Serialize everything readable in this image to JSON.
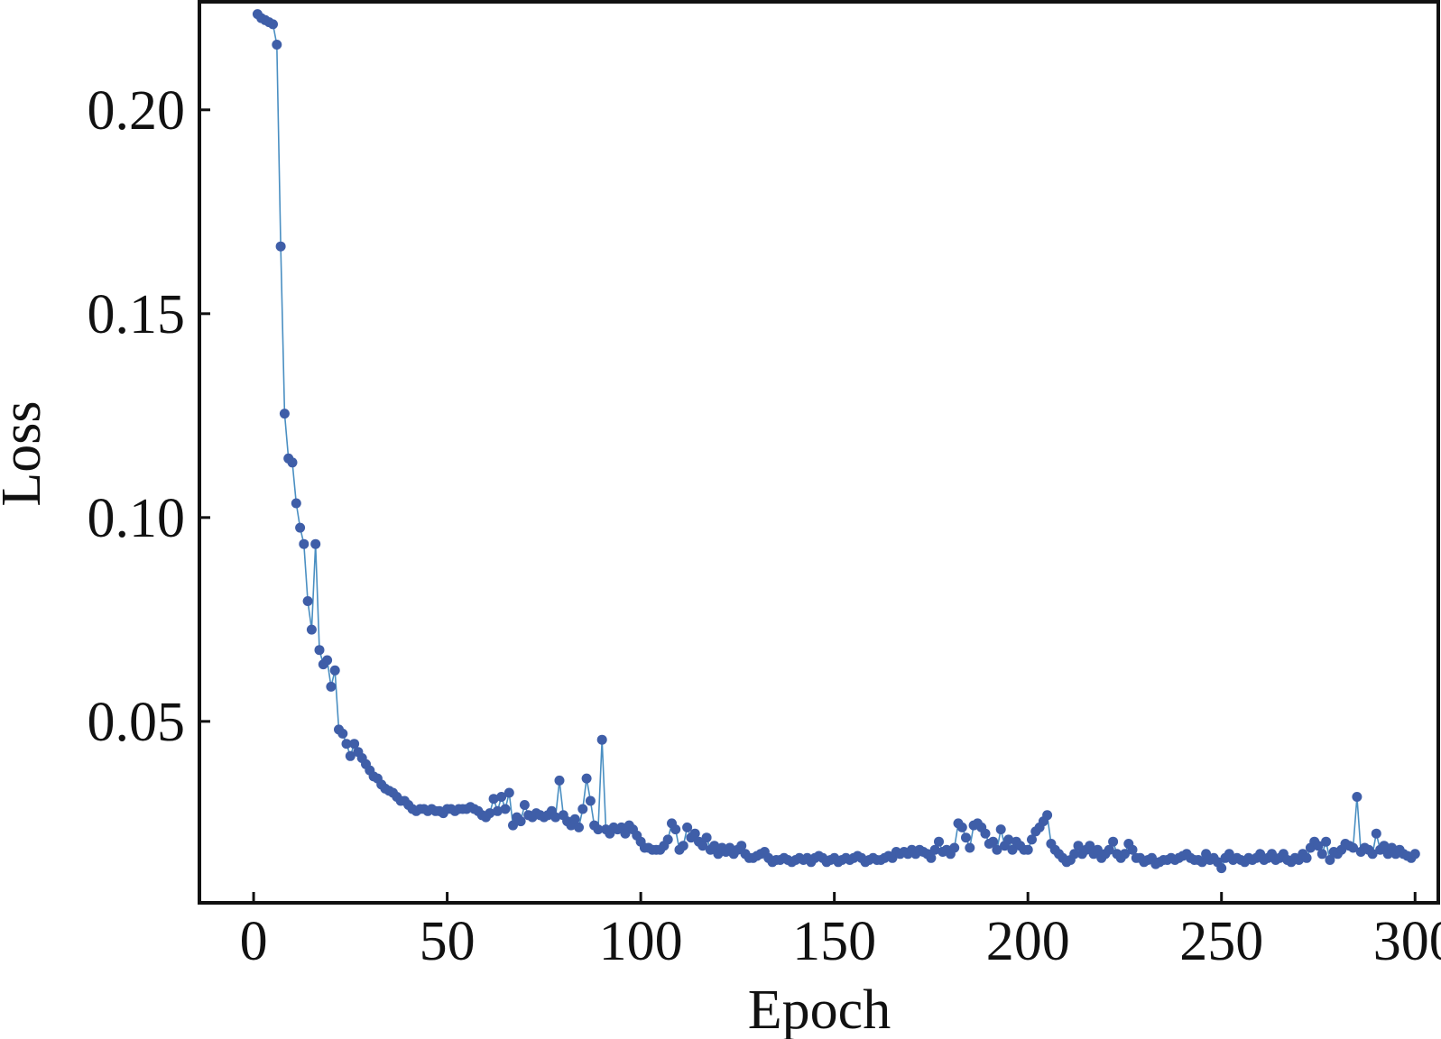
{
  "chart_data": {
    "type": "line",
    "title": "",
    "xlabel": "Epoch",
    "ylabel": "Loss",
    "xlim": [
      -14,
      306
    ],
    "ylim": [
      0.0055,
      0.2265
    ],
    "xticks": [
      0,
      50,
      100,
      150,
      200,
      250,
      300
    ],
    "xtick_labels": [
      "0",
      "50",
      "100",
      "150",
      "200",
      "250",
      "300"
    ],
    "yticks": [
      0.05,
      0.1,
      0.15,
      0.2
    ],
    "ytick_labels": [
      "0.05",
      "0.10",
      "0.15",
      "0.20"
    ],
    "grid": false,
    "legend": "none",
    "colors": {
      "marker": "#3f5ea8",
      "line": "#4a8fc2",
      "axis": "#111111"
    },
    "series": [
      {
        "x": [
          1,
          2,
          3,
          4,
          5,
          6,
          7,
          8,
          9,
          10,
          11,
          12,
          13,
          14,
          15,
          16,
          17,
          18,
          19,
          20,
          21,
          22,
          23,
          24,
          25,
          26,
          27,
          28,
          29,
          30,
          31,
          32,
          33,
          34,
          35,
          36,
          37,
          38,
          39,
          40,
          41,
          42,
          43,
          44,
          45,
          46,
          47,
          48,
          49,
          50,
          51,
          52,
          53,
          54,
          55,
          56,
          57,
          58,
          59,
          60,
          61,
          62,
          63,
          64,
          65,
          66,
          67,
          68,
          69,
          70,
          71,
          72,
          73,
          74,
          75,
          76,
          77,
          78,
          79,
          80,
          81,
          82,
          83,
          84,
          85,
          86,
          87,
          88,
          89,
          90,
          91,
          92,
          93,
          94,
          95,
          96,
          97,
          98,
          99,
          100,
          101,
          102,
          103,
          104,
          105,
          106,
          107,
          108,
          109,
          110,
          111,
          112,
          113,
          114,
          115,
          116,
          117,
          118,
          119,
          120,
          121,
          122,
          123,
          124,
          125,
          126,
          127,
          128,
          129,
          130,
          131,
          132,
          133,
          134,
          135,
          136,
          137,
          138,
          139,
          140,
          141,
          142,
          143,
          144,
          145,
          146,
          147,
          148,
          149,
          150,
          151,
          152,
          153,
          154,
          155,
          156,
          157,
          158,
          159,
          160,
          161,
          162,
          163,
          164,
          165,
          166,
          167,
          168,
          169,
          170,
          171,
          172,
          173,
          174,
          175,
          176,
          177,
          178,
          179,
          180,
          181,
          182,
          183,
          184,
          185,
          186,
          187,
          188,
          189,
          190,
          191,
          192,
          193,
          194,
          195,
          196,
          197,
          198,
          199,
          200,
          201,
          202,
          203,
          204,
          205,
          206,
          207,
          208,
          209,
          210,
          211,
          212,
          213,
          214,
          215,
          216,
          217,
          218,
          219,
          220,
          221,
          222,
          223,
          224,
          225,
          226,
          227,
          228,
          229,
          230,
          231,
          232,
          233,
          234,
          235,
          236,
          237,
          238,
          239,
          240,
          241,
          242,
          243,
          244,
          245,
          246,
          247,
          248,
          249,
          250,
          251,
          252,
          253,
          254,
          255,
          256,
          257,
          258,
          259,
          260,
          261,
          262,
          263,
          264,
          265,
          266,
          267,
          268,
          269,
          270,
          271,
          272,
          273,
          274,
          275,
          276,
          277,
          278,
          279,
          280,
          281,
          282,
          283,
          284,
          285,
          286,
          287,
          288,
          289,
          290,
          291,
          292,
          293,
          294,
          295,
          296,
          297,
          298,
          299,
          300
        ],
        "values": [
          0.2235,
          0.2225,
          0.222,
          0.2215,
          0.221,
          0.216,
          0.1665,
          0.1255,
          0.1145,
          0.1135,
          0.1035,
          0.0975,
          0.0935,
          0.0795,
          0.0725,
          0.0935,
          0.0675,
          0.064,
          0.065,
          0.0585,
          0.0625,
          0.048,
          0.047,
          0.0445,
          0.0415,
          0.0445,
          0.0425,
          0.041,
          0.0395,
          0.038,
          0.0365,
          0.036,
          0.0345,
          0.0335,
          0.033,
          0.0325,
          0.0315,
          0.0305,
          0.0305,
          0.0295,
          0.0285,
          0.028,
          0.0285,
          0.0285,
          0.028,
          0.0285,
          0.028,
          0.028,
          0.0275,
          0.0285,
          0.0285,
          0.028,
          0.0285,
          0.0285,
          0.0285,
          0.029,
          0.0285,
          0.028,
          0.027,
          0.0265,
          0.0275,
          0.031,
          0.028,
          0.0315,
          0.0285,
          0.0325,
          0.0245,
          0.0265,
          0.0255,
          0.0295,
          0.027,
          0.0265,
          0.0275,
          0.027,
          0.0265,
          0.027,
          0.028,
          0.0265,
          0.0355,
          0.027,
          0.0255,
          0.0245,
          0.026,
          0.024,
          0.0285,
          0.036,
          0.0305,
          0.0245,
          0.0235,
          0.0455,
          0.0235,
          0.0225,
          0.024,
          0.0235,
          0.024,
          0.0225,
          0.0245,
          0.0235,
          0.022,
          0.0205,
          0.019,
          0.019,
          0.0185,
          0.0185,
          0.0185,
          0.0195,
          0.021,
          0.025,
          0.0235,
          0.0185,
          0.0195,
          0.024,
          0.0215,
          0.0225,
          0.0205,
          0.0195,
          0.0215,
          0.0185,
          0.0195,
          0.0175,
          0.019,
          0.018,
          0.019,
          0.0175,
          0.0185,
          0.0195,
          0.0175,
          0.0165,
          0.0165,
          0.017,
          0.0175,
          0.018,
          0.0165,
          0.0155,
          0.016,
          0.016,
          0.0165,
          0.016,
          0.0155,
          0.016,
          0.0165,
          0.016,
          0.0165,
          0.0155,
          0.0165,
          0.017,
          0.0165,
          0.0155,
          0.016,
          0.0165,
          0.0155,
          0.016,
          0.0165,
          0.016,
          0.0165,
          0.017,
          0.0165,
          0.0155,
          0.016,
          0.0165,
          0.016,
          0.016,
          0.0165,
          0.017,
          0.0165,
          0.018,
          0.0175,
          0.018,
          0.0175,
          0.0185,
          0.0175,
          0.0185,
          0.018,
          0.0175,
          0.0165,
          0.0185,
          0.0205,
          0.018,
          0.0185,
          0.0175,
          0.019,
          0.025,
          0.024,
          0.0215,
          0.019,
          0.0245,
          0.025,
          0.024,
          0.0225,
          0.02,
          0.0205,
          0.0185,
          0.0235,
          0.0195,
          0.021,
          0.0185,
          0.0205,
          0.0195,
          0.0185,
          0.0185,
          0.021,
          0.023,
          0.024,
          0.0255,
          0.027,
          0.02,
          0.0185,
          0.0175,
          0.0165,
          0.0155,
          0.016,
          0.0175,
          0.0195,
          0.0175,
          0.0185,
          0.0195,
          0.0175,
          0.0185,
          0.0165,
          0.0175,
          0.0185,
          0.0205,
          0.0175,
          0.0165,
          0.0175,
          0.02,
          0.0185,
          0.0165,
          0.0165,
          0.0155,
          0.016,
          0.0165,
          0.015,
          0.0155,
          0.016,
          0.016,
          0.0165,
          0.016,
          0.0165,
          0.017,
          0.0175,
          0.0165,
          0.016,
          0.016,
          0.0155,
          0.0175,
          0.016,
          0.0165,
          0.0155,
          0.014,
          0.0165,
          0.0175,
          0.016,
          0.0165,
          0.016,
          0.0155,
          0.0165,
          0.016,
          0.0165,
          0.0175,
          0.016,
          0.0165,
          0.0175,
          0.016,
          0.0165,
          0.0175,
          0.016,
          0.0155,
          0.0165,
          0.016,
          0.0175,
          0.0165,
          0.019,
          0.0205,
          0.0195,
          0.0175,
          0.0205,
          0.016,
          0.018,
          0.0175,
          0.0185,
          0.02,
          0.0195,
          0.019,
          0.0315,
          0.018,
          0.019,
          0.0185,
          0.0175,
          0.0225,
          0.0185,
          0.0195,
          0.0175,
          0.019,
          0.0175,
          0.0185,
          0.0175,
          0.017,
          0.0165,
          0.0175
        ]
      }
    ]
  }
}
